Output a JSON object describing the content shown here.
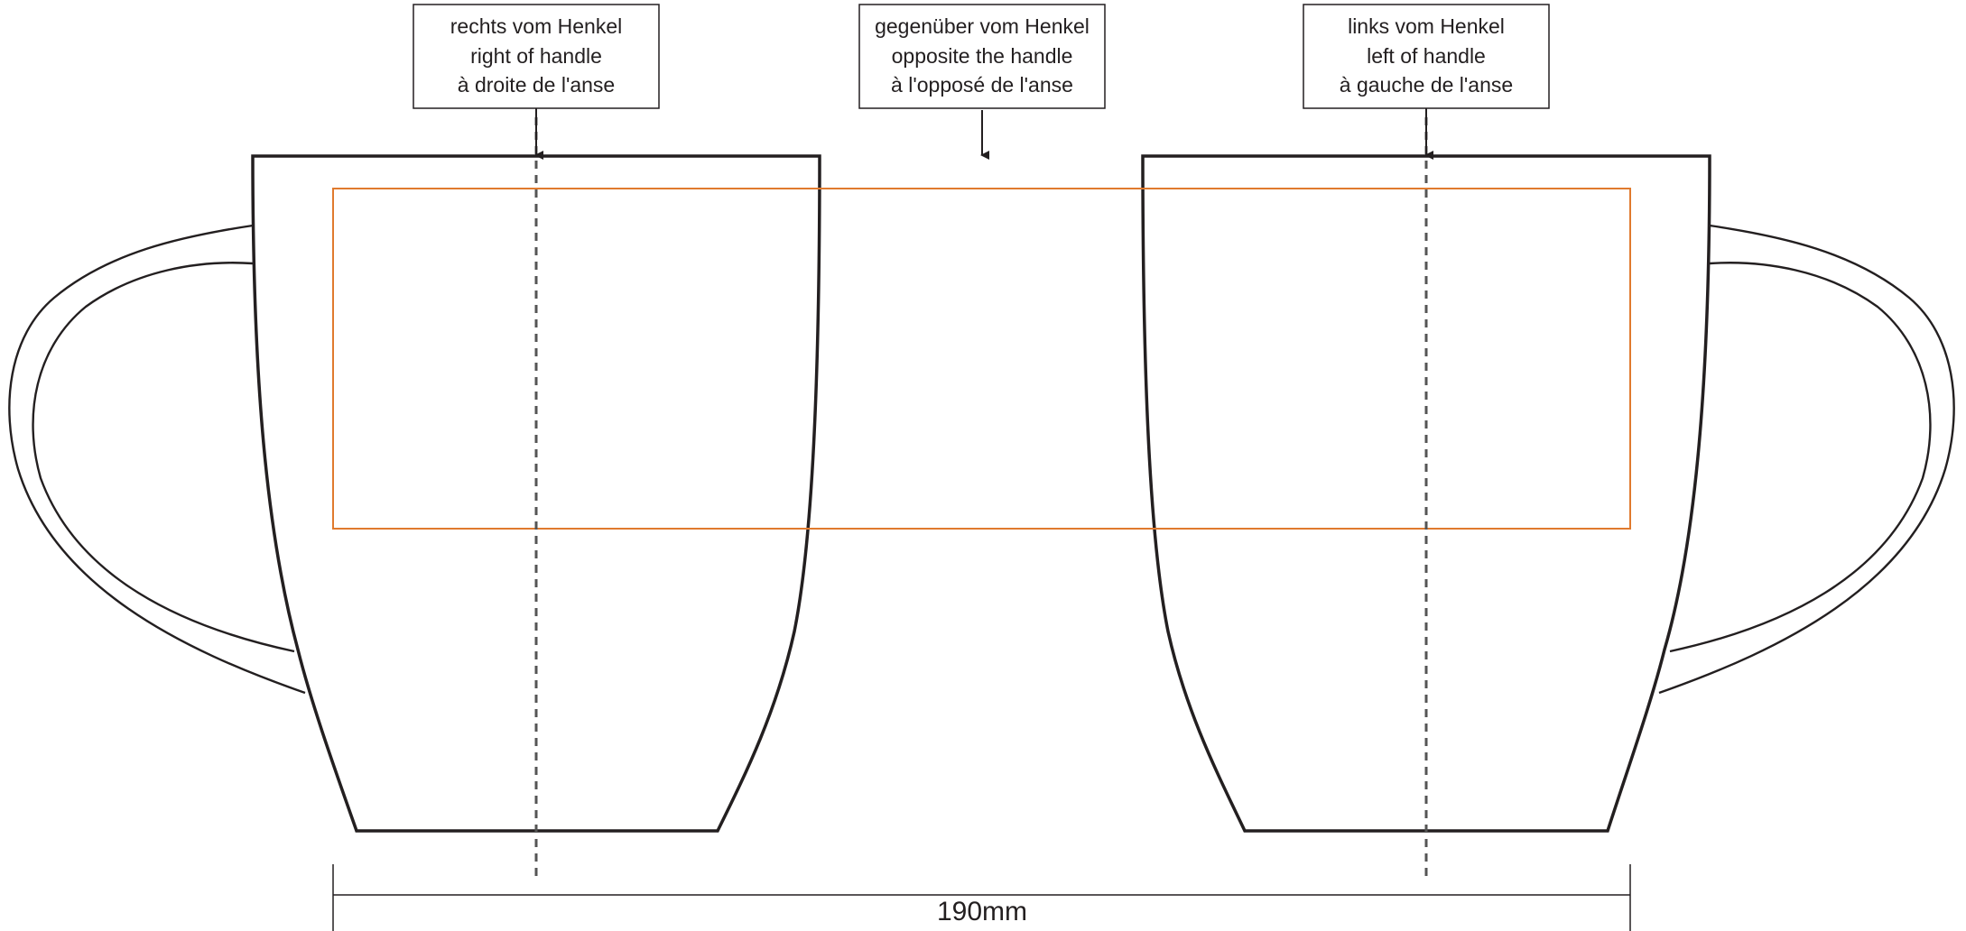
{
  "labels": {
    "right_of_handle": [
      "rechts vom Henkel",
      "right of handle",
      "à droite  de l'anse"
    ],
    "opposite_handle": [
      "gegenüber vom Henkel",
      "opposite the handle",
      "à l'opposé de l'anse"
    ],
    "left_of_handle": [
      "links vom Henkel",
      "left of handle",
      "à gauche de l'anse"
    ]
  },
  "dimension": {
    "width_label": "190mm"
  },
  "colors": {
    "outline": "#231f20",
    "print_area": "#e07a2e",
    "guide": "#555555"
  }
}
